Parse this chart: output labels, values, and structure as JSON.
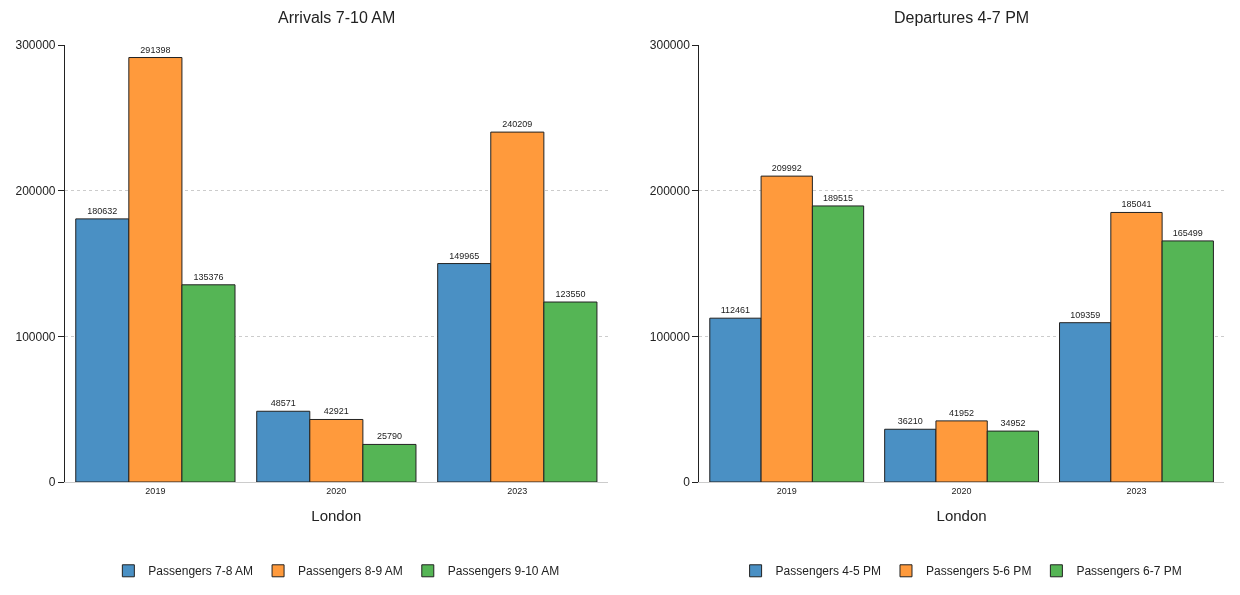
{
  "chart_data": [
    {
      "type": "bar",
      "title": "Arrivals 7-10 AM",
      "xlabel": "London",
      "categories": [
        "2019",
        "2020",
        "2023"
      ],
      "series": [
        {
          "name": "Passengers 7-8 AM",
          "color": "#4a90c4",
          "values": [
            180632,
            48571,
            149965
          ]
        },
        {
          "name": "Passengers 8-9 AM",
          "color": "#ff9a3c",
          "values": [
            291398,
            42921,
            240209
          ]
        },
        {
          "name": "Passengers 9-10 AM",
          "color": "#55b555",
          "values": [
            135376,
            25790,
            123550
          ]
        }
      ],
      "ylim": [
        0,
        300000
      ],
      "yticks": [
        0,
        100000,
        200000,
        300000
      ],
      "grid": "y",
      "legend": "bottom",
      "data_labels": true
    },
    {
      "type": "bar",
      "title": "Departures 4-7 PM",
      "xlabel": "London",
      "categories": [
        "2019",
        "2020",
        "2023"
      ],
      "series": [
        {
          "name": "Passengers 4-5 PM",
          "color": "#4a90c4",
          "values": [
            112461,
            36210,
            109359
          ]
        },
        {
          "name": "Passengers 5-6 PM",
          "color": "#ff9a3c",
          "values": [
            209992,
            41952,
            185041
          ]
        },
        {
          "name": "Passengers 6-7 PM",
          "color": "#55b555",
          "values": [
            189515,
            34952,
            165499
          ]
        }
      ],
      "ylim": [
        0,
        300000
      ],
      "yticks": [
        0,
        100000,
        200000,
        300000
      ],
      "grid": "y",
      "legend": "bottom",
      "data_labels": true
    }
  ]
}
